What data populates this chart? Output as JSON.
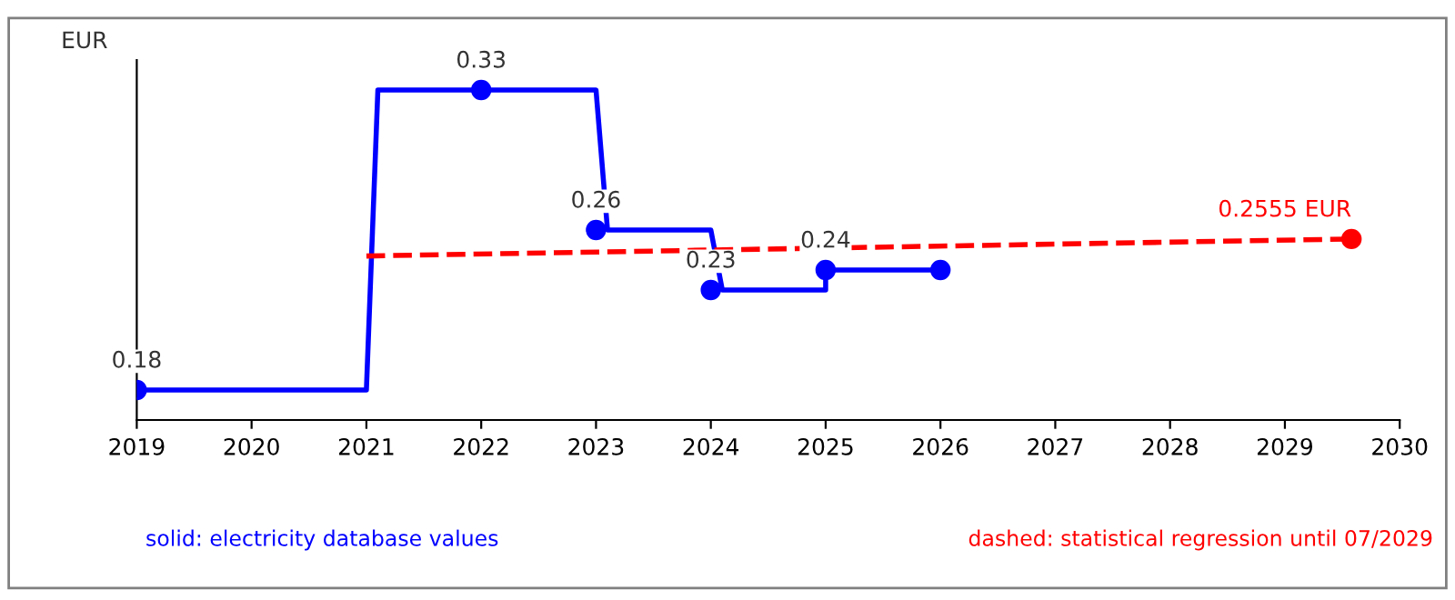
{
  "chart_data": {
    "type": "line",
    "ylabel": "EUR",
    "xlim": [
      2019,
      2030
    ],
    "xticks": [
      2019,
      2020,
      2021,
      2022,
      2023,
      2024,
      2025,
      2026,
      2027,
      2028,
      2029,
      2030
    ],
    "ylim": [
      0.165,
      0.345
    ],
    "tick_labels": "x",
    "grid": false,
    "legend": false,
    "line_style": "solid",
    "series": [
      {
        "color": "#0000ff",
        "marker": "none",
        "x": [
          2019,
          2021,
          2021.1,
          2023,
          2023.1,
          2024,
          2024.1,
          2025,
          2025,
          2026
        ],
        "values": [
          0.18,
          0.18,
          0.33,
          0.33,
          0.26,
          0.26,
          0.23,
          0.23,
          0.24,
          0.24
        ]
      },
      {
        "type": "scatter",
        "color": "#0000ff",
        "marker": "circle",
        "x": [
          2019,
          2022,
          2023,
          2024,
          2025,
          2026
        ],
        "values": [
          0.18,
          0.33,
          0.26,
          0.23,
          0.24,
          0.24
        ],
        "value_labels": [
          "0.18",
          "0.33",
          "0.26",
          "0.23",
          "0.24",
          null
        ]
      },
      {
        "color": "#ff0000",
        "marker": "none",
        "line_style": "dashed",
        "x": [
          2021,
          2029.58
        ],
        "values": [
          0.247,
          0.2555
        ]
      },
      {
        "type": "scatter",
        "color": "#ff0000",
        "marker": "circle",
        "x": [
          2029.58
        ],
        "values": [
          0.2555
        ],
        "value_labels": [
          "0.2555 EUR"
        ]
      }
    ],
    "annotations": [
      "solid: electricity database values",
      "dashed: statistical regression until 07/2029"
    ]
  }
}
